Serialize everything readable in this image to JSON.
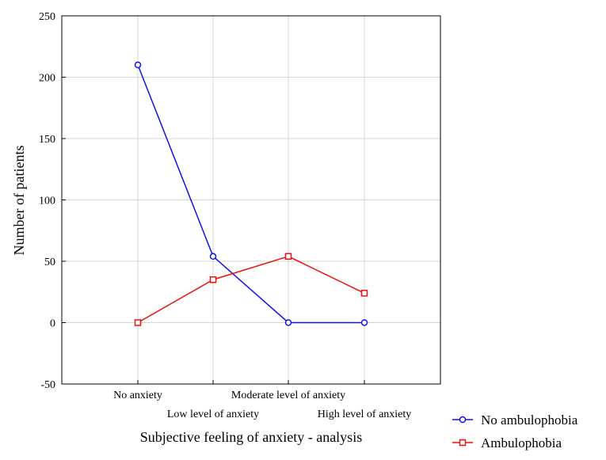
{
  "chart_data": {
    "type": "line",
    "categories": [
      "No anxiety",
      "Low level of anxiety",
      "Moderate level of anxiety",
      "High level of anxiety"
    ],
    "series": [
      {
        "name": "No ambulophobia",
        "values": [
          210,
          54,
          0,
          0
        ],
        "color": "#1010ee",
        "marker": "circle"
      },
      {
        "name": "Ambulophobia",
        "values": [
          0,
          35,
          54,
          24
        ],
        "color": "#ee1010",
        "marker": "square"
      }
    ],
    "xlabel": "Subjective feeling of anxiety - analysis",
    "ylabel": "Number of patients",
    "ylim": [
      -50,
      250
    ],
    "yticks": [
      -50,
      0,
      50,
      100,
      150,
      200,
      250
    ],
    "ytick_labels": [
      "-50",
      "0",
      "50",
      "100",
      "150",
      "200",
      "250"
    ],
    "grid": true,
    "legend": "bottom-right"
  }
}
